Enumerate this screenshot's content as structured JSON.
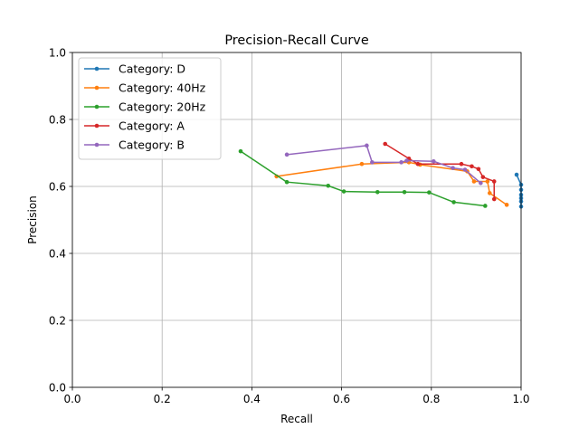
{
  "chart_data": {
    "type": "line",
    "title": "Precision-Recall Curve",
    "xlabel": "Recall",
    "ylabel": "Precision",
    "xlim": [
      0,
      1
    ],
    "ylim": [
      0,
      1
    ],
    "xticks": [
      "0.0",
      "0.2",
      "0.4",
      "0.6",
      "0.8",
      "1.0"
    ],
    "yticks": [
      "0.0",
      "0.2",
      "0.4",
      "0.6",
      "0.8",
      "1.0"
    ],
    "grid": true,
    "legend_position": "top-left",
    "series": [
      {
        "name": "Category: D",
        "color": "#1f77b4",
        "x": [
          0.99,
          1.0,
          1.0,
          1.0,
          1.0,
          1.0,
          1.0
        ],
        "y": [
          0.635,
          0.605,
          0.59,
          0.575,
          0.565,
          0.555,
          0.54
        ]
      },
      {
        "name": "Category: 40Hz",
        "color": "#ff7f0e",
        "x": [
          0.455,
          0.645,
          0.75,
          0.775,
          0.88,
          0.895,
          0.925,
          0.93,
          0.968
        ],
        "y": [
          0.63,
          0.667,
          0.672,
          0.665,
          0.645,
          0.615,
          0.615,
          0.58,
          0.545
        ]
      },
      {
        "name": "Category: 20Hz",
        "color": "#2ca02c",
        "x": [
          0.375,
          0.478,
          0.57,
          0.605,
          0.68,
          0.74,
          0.795,
          0.85,
          0.92
        ],
        "y": [
          0.705,
          0.613,
          0.602,
          0.585,
          0.583,
          0.583,
          0.582,
          0.553,
          0.542
        ]
      },
      {
        "name": "Category: A",
        "color": "#d62728",
        "x": [
          0.697,
          0.75,
          0.77,
          0.867,
          0.89,
          0.905,
          0.915,
          0.94,
          0.94
        ],
        "y": [
          0.727,
          0.683,
          0.667,
          0.667,
          0.66,
          0.652,
          0.628,
          0.615,
          0.562
        ]
      },
      {
        "name": "Category: B",
        "color": "#9467bd",
        "x": [
          0.478,
          0.656,
          0.668,
          0.733,
          0.745,
          0.805,
          0.848,
          0.875,
          0.91
        ],
        "y": [
          0.695,
          0.722,
          0.672,
          0.672,
          0.677,
          0.675,
          0.655,
          0.65,
          0.61
        ]
      }
    ]
  }
}
